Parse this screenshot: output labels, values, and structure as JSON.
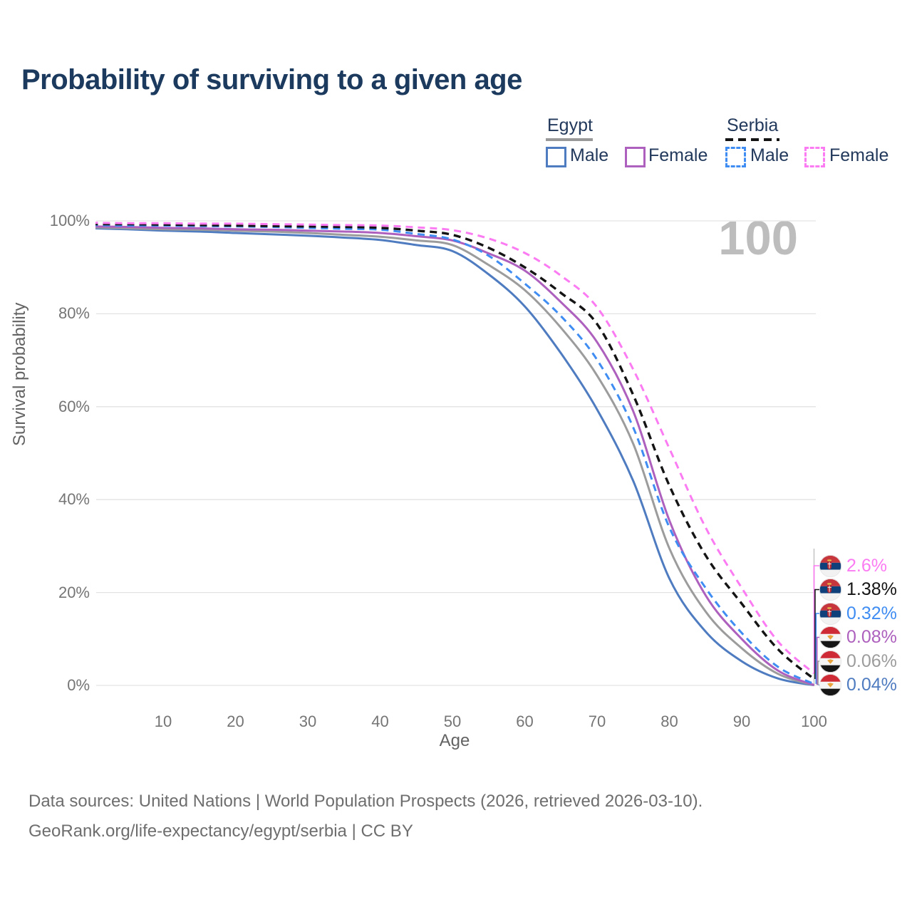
{
  "title": "Probability of surviving to a given age",
  "watermark_age": "100",
  "legend": {
    "groups": [
      {
        "country": "Egypt",
        "line_style": "solid",
        "underline_color": "#999999",
        "items": [
          {
            "label": "Male",
            "color": "#4f7cc0",
            "dashed": false
          },
          {
            "label": "Female",
            "color": "#ad60bd",
            "dashed": false
          }
        ]
      },
      {
        "country": "Serbia",
        "line_style": "dashed",
        "underline_color": "#141414",
        "items": [
          {
            "label": "Male",
            "color": "#3f8df2",
            "dashed": true
          },
          {
            "label": "Female",
            "color": "#fb7bf2",
            "dashed": true
          }
        ]
      }
    ]
  },
  "chart_data": {
    "type": "line",
    "title": "Probability of surviving to a given age",
    "xlabel": "Age",
    "ylabel": "Survival probability",
    "xlim": [
      0,
      100
    ],
    "ylim": [
      0,
      100
    ],
    "grid": "horizontal",
    "x_ticks": [
      10,
      20,
      30,
      40,
      50,
      60,
      70,
      80,
      90,
      100
    ],
    "y_ticks": [
      100,
      80,
      60,
      40,
      20,
      0
    ],
    "y_tick_labels": [
      "100%",
      "80%",
      "60%",
      "40%",
      "20%",
      "0%"
    ],
    "hover_age": 100,
    "x": [
      0,
      5,
      10,
      15,
      20,
      25,
      30,
      35,
      40,
      45,
      50,
      55,
      60,
      65,
      70,
      75,
      80,
      85,
      90,
      95,
      100
    ],
    "series": [
      {
        "name": "Serbia Female",
        "country": "Serbia",
        "flag": "serbia",
        "color": "#fb7bf2",
        "dashed": true,
        "end_label": "2.6%",
        "values": [
          99.6,
          99.5,
          99.5,
          99.4,
          99.4,
          99.3,
          99.2,
          99.1,
          99.0,
          98.6,
          98.0,
          96.2,
          93.1,
          88.2,
          81.4,
          68.0,
          51.0,
          34.0,
          21.0,
          9.5,
          2.6
        ]
      },
      {
        "name": "Serbia",
        "country": "Serbia",
        "flag": "serbia",
        "color": "#141414",
        "dashed": true,
        "end_label": "1.38%",
        "values": [
          99.3,
          99.3,
          99.2,
          99.1,
          99.0,
          98.9,
          98.8,
          98.7,
          98.5,
          97.9,
          97.0,
          94.2,
          90.0,
          84.5,
          77.8,
          62.5,
          43.0,
          28.0,
          17.6,
          7.8,
          1.38
        ]
      },
      {
        "name": "Serbia Male",
        "country": "Serbia",
        "flag": "serbia",
        "color": "#3f8df2",
        "dashed": true,
        "end_label": "0.32%",
        "values": [
          99.1,
          99.0,
          99.0,
          98.9,
          98.8,
          98.7,
          98.5,
          98.3,
          98.1,
          97.2,
          96.0,
          92.5,
          86.5,
          79.5,
          70.1,
          55.5,
          34.0,
          21.0,
          11.3,
          4.0,
          0.32
        ]
      },
      {
        "name": "Egypt Female",
        "country": "Egypt",
        "flag": "egypt",
        "color": "#ad60bd",
        "dashed": false,
        "end_label": "0.08%",
        "values": [
          98.8,
          98.7,
          98.5,
          98.4,
          98.2,
          98.1,
          97.9,
          97.7,
          97.4,
          96.7,
          95.8,
          93.0,
          89.3,
          82.5,
          73.9,
          59.0,
          35.5,
          19.4,
          10.0,
          3.2,
          0.08
        ]
      },
      {
        "name": "Egypt",
        "country": "Egypt",
        "flag": "egypt",
        "color": "#9c9c9c",
        "dashed": false,
        "end_label": "0.06%",
        "values": [
          98.6,
          98.4,
          98.2,
          98.1,
          97.9,
          97.7,
          97.4,
          97.0,
          96.6,
          95.8,
          94.8,
          90.5,
          85.1,
          77.0,
          66.7,
          52.0,
          29.5,
          15.9,
          8.0,
          2.5,
          0.06
        ]
      },
      {
        "name": "Egypt Male",
        "country": "Egypt",
        "flag": "egypt",
        "color": "#4f7cc0",
        "dashed": false,
        "end_label": "0.04%",
        "values": [
          98.4,
          98.2,
          97.9,
          97.7,
          97.4,
          97.1,
          96.8,
          96.4,
          95.9,
          94.8,
          93.5,
          88.5,
          81.6,
          71.5,
          59.4,
          44.0,
          23.0,
          11.6,
          5.2,
          1.5,
          0.04
        ]
      }
    ]
  },
  "colors": {
    "gridline": "#e3e3e3",
    "hover_line": "#c6c6c6",
    "tick_text": "#757575",
    "title_text": "#1b3a5e",
    "watermark": "#bdbdbd"
  },
  "footer": {
    "line1": "Data sources: United Nations | World Population Prospects (2026, retrieved 2026-03-10).",
    "line2": "GeoRank.org/life-expectancy/egypt/serbia | CC BY"
  }
}
